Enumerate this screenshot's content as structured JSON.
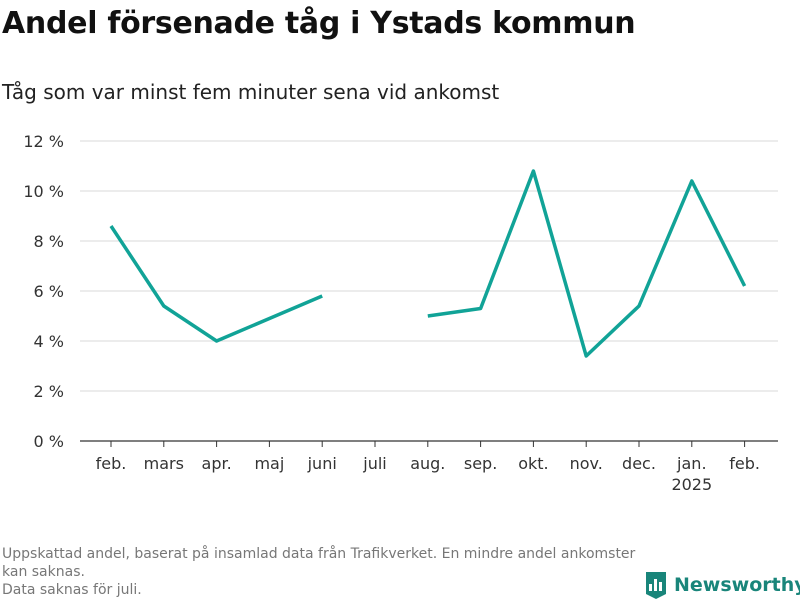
{
  "title": "Andel försenade tåg i Ystads kommun",
  "subtitle": "Tåg som var minst fem minuter sena vid ankomst",
  "footnote": {
    "line1": "Uppskattad andel, baserat på insamlad data från Trafikverket. En mindre andel ankomster kan saknas.",
    "line2": "Data saknas för juli."
  },
  "brand": {
    "name": "Newsworthy",
    "icon": "bar-chart-icon",
    "color": "#19857a"
  },
  "chart_data": {
    "type": "line",
    "title": "Andel försenade tåg i Ystads kommun",
    "subtitle": "Tåg som var minst fem minuter sena vid ankomst",
    "categories": [
      "feb.",
      "mars",
      "apr.",
      "maj",
      "juni",
      "juli",
      "aug.",
      "sep.",
      "okt.",
      "nov.",
      "dec.",
      "jan.",
      "feb."
    ],
    "category_sublabels": [
      "",
      "",
      "",
      "",
      "",
      "",
      "",
      "",
      "",
      "",
      "",
      "2025",
      ""
    ],
    "series": [
      {
        "values": [
          8.6,
          5.4,
          4.0,
          4.9,
          5.8,
          null,
          5.0,
          5.3,
          10.8,
          3.4,
          5.4,
          10.4,
          6.2
        ],
        "color": "#11a397"
      }
    ],
    "ylim": [
      0,
      12
    ],
    "yticks": [
      0,
      2,
      4,
      6,
      8,
      10,
      12
    ],
    "ytick_labels": [
      "0 %",
      "2 %",
      "4 %",
      "6 %",
      "8 %",
      "10 %",
      "12 %"
    ],
    "grid": true,
    "legend": "none"
  }
}
